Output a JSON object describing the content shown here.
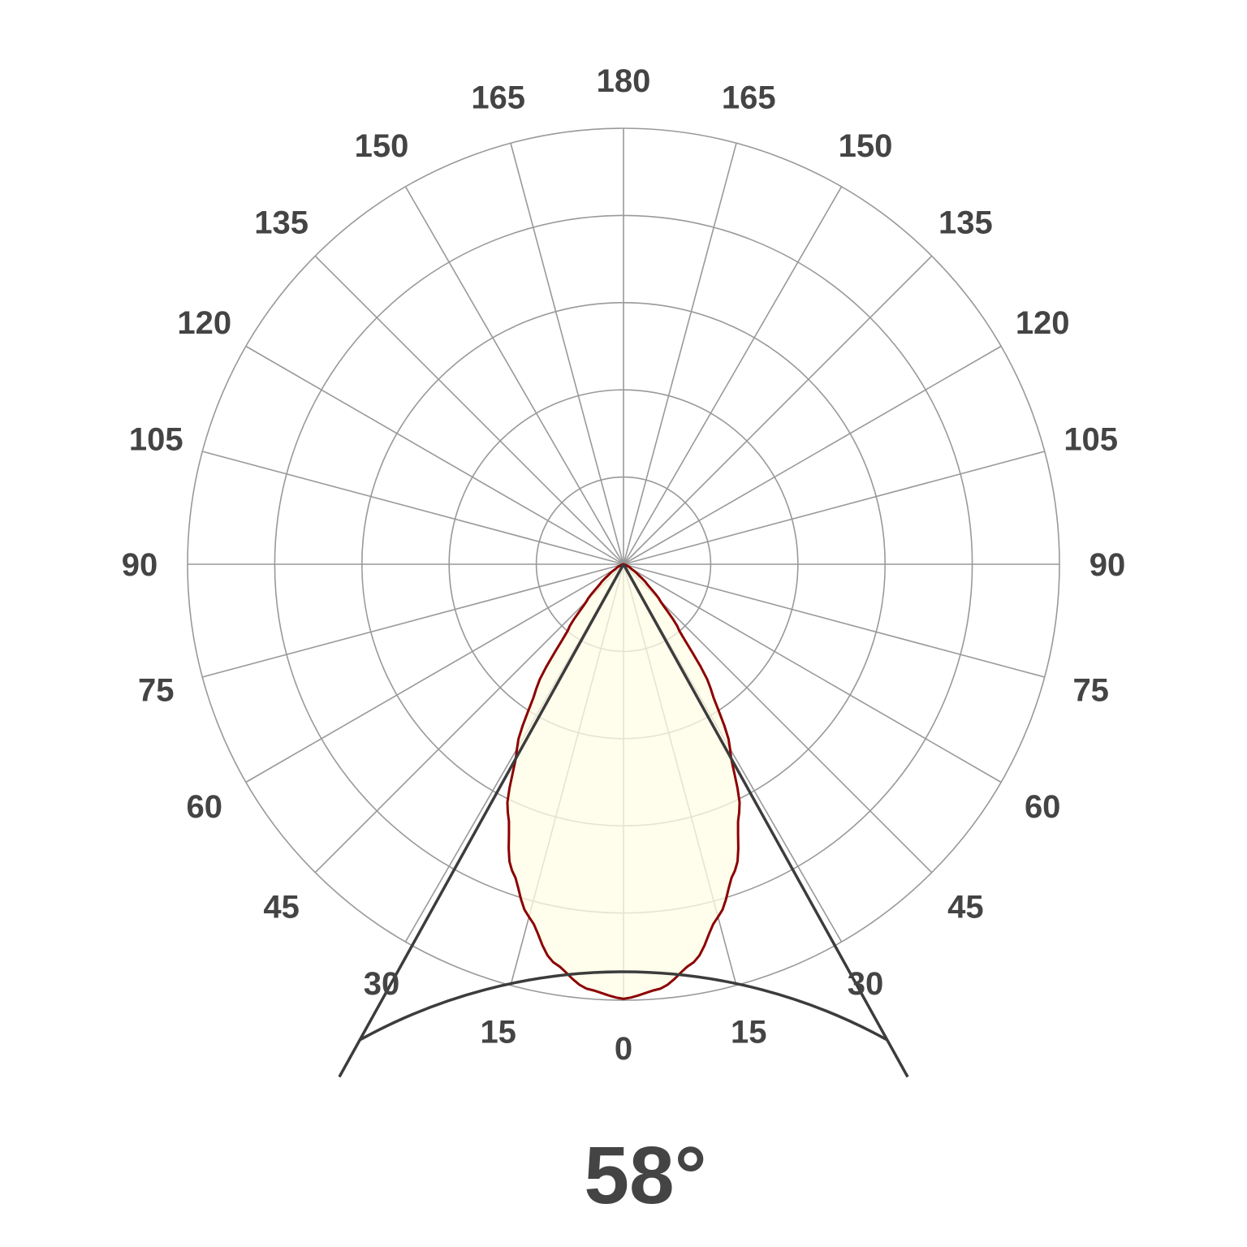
{
  "chart_data": {
    "type": "polar",
    "title": "",
    "angular_tick_labels": [
      "0",
      "15",
      "30",
      "45",
      "60",
      "75",
      "90",
      "105",
      "120",
      "135",
      "150",
      "165",
      "180"
    ],
    "angular_range_deg": [
      -180,
      180
    ],
    "radial_rings": 5,
    "radial_tick_labels_shown": false,
    "grid": true,
    "series": [
      {
        "angles_deg": [
          0,
          5,
          10,
          15,
          20,
          25,
          30,
          35,
          40,
          45,
          50,
          55,
          60,
          70,
          80,
          90
        ],
        "relative_intensity": [
          1.0,
          0.98,
          0.93,
          0.84,
          0.75,
          0.63,
          0.49,
          0.35,
          0.2,
          0.12,
          0.07,
          0.04,
          0.02,
          0.005,
          0,
          0
        ],
        "symmetric": true
      }
    ],
    "beam_angle_deg": 58,
    "beam_angle_label": "58°",
    "colors": {
      "curve": "#8b0000",
      "fill": "#fffce4",
      "grid": "#999999",
      "text": "#444444",
      "beam_lines": "#3c3c3c"
    }
  }
}
